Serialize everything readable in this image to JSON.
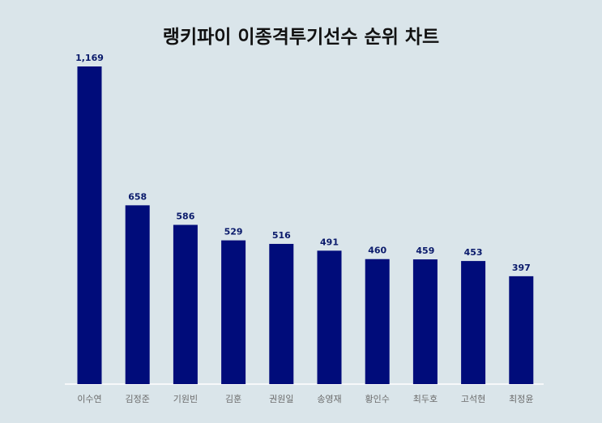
{
  "chart_data": {
    "type": "bar",
    "title": "랭키파이 이종격투기선수 순위 차트",
    "xlabel": "",
    "ylabel": "",
    "categories": [
      "이수연",
      "김정준",
      "기원빈",
      "김훈",
      "권원일",
      "송영재",
      "황인수",
      "최두호",
      "고석현",
      "최정윤"
    ],
    "values": [
      1169,
      658,
      586,
      529,
      516,
      491,
      460,
      459,
      453,
      397
    ],
    "value_labels": [
      "1,169",
      "658",
      "586",
      "529",
      "516",
      "491",
      "460",
      "459",
      "453",
      "397"
    ],
    "ylim": [
      0,
      1169
    ],
    "grid": false,
    "legend": "none",
    "colors": {
      "bar": "#000c7a",
      "value_label": "#0a1a6b",
      "category_label": "#6b6b6b",
      "baseline": "#ffffff",
      "background": "#dae5ea"
    }
  }
}
